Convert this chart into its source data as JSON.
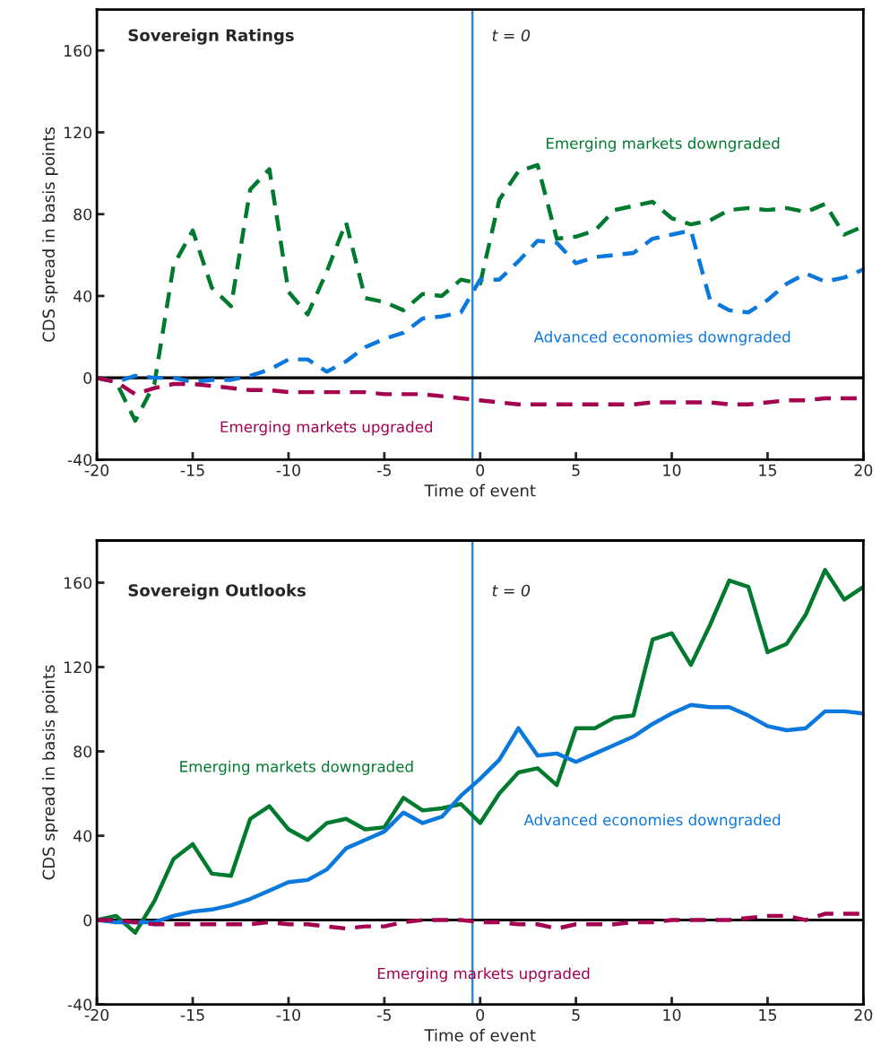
{
  "chart_data": [
    {
      "type": "line",
      "title": "Sovereign Ratings",
      "xlabel": "Time of event",
      "ylabel": "CDS spread in basis points",
      "x": [
        -20,
        -19,
        -18,
        -17,
        -16,
        -15,
        -14,
        -13,
        -12,
        -11,
        -10,
        -9,
        -8,
        -7,
        -6,
        -5,
        -4,
        -3,
        -2,
        -1,
        0,
        1,
        2,
        3,
        4,
        5,
        6,
        7,
        8,
        9,
        10,
        11,
        12,
        13,
        14,
        15,
        16,
        17,
        18,
        19,
        20
      ],
      "series": [
        {
          "name": "Emerging markets downgraded",
          "color": "#007a2e",
          "line_style": "dashed",
          "values": [
            0,
            -2,
            -21,
            -3,
            55,
            72,
            44,
            35,
            92,
            102,
            42,
            31,
            52,
            76,
            39,
            37,
            33,
            41,
            40,
            48,
            46,
            87,
            101,
            104,
            68,
            69,
            72,
            82,
            84,
            86,
            78,
            75,
            77,
            82,
            83,
            82,
            83,
            81,
            85,
            70,
            74
          ]
        },
        {
          "name": "Advanced economies downgraded",
          "color": "#0a78dc",
          "line_style": "dashed",
          "values": [
            0,
            -2,
            1,
            0,
            0,
            -2,
            -1,
            -1,
            1,
            4,
            9,
            9,
            3,
            8,
            15,
            19,
            22,
            29,
            30,
            32,
            48,
            48,
            57,
            67,
            66,
            56,
            59,
            60,
            61,
            68,
            70,
            72,
            38,
            33,
            32,
            38,
            46,
            51,
            47,
            49,
            53
          ]
        },
        {
          "name": "Emerging markets upgraded",
          "color": "#a5004f",
          "line_style": "dashed",
          "values": [
            0,
            -2,
            -8,
            -5,
            -3,
            -3,
            -4,
            -5,
            -6,
            -6,
            -7,
            -7,
            -7,
            -7,
            -7,
            -8,
            -8,
            -8,
            -9,
            -10,
            -11,
            -12,
            -13,
            -13,
            -13,
            -13,
            -13,
            -13,
            -13,
            -12,
            -12,
            -12,
            -12,
            -13,
            -13,
            -12,
            -11,
            -11,
            -10,
            -10,
            -10
          ]
        }
      ],
      "xlim": [
        -20,
        20
      ],
      "ylim": [
        -40,
        180
      ],
      "xticks": [
        -20,
        -15,
        -10,
        -5,
        0,
        5,
        10,
        15,
        20
      ],
      "yticks": [
        -40,
        0,
        40,
        80,
        120,
        160
      ],
      "grid": false,
      "ref_lines": [
        {
          "axis": "x",
          "value": -0.4,
          "label": "t = 0",
          "color": "#2e8bd0"
        },
        {
          "axis": "y",
          "value": 0,
          "color": "#000000"
        }
      ]
    },
    {
      "type": "line",
      "title": "Sovereign Outlooks",
      "xlabel": "Time of event",
      "ylabel": "CDS spread in basis points",
      "x": [
        -20,
        -19,
        -18,
        -17,
        -16,
        -15,
        -14,
        -13,
        -12,
        -11,
        -10,
        -9,
        -8,
        -7,
        -6,
        -5,
        -4,
        -3,
        -2,
        -1,
        0,
        1,
        2,
        3,
        4,
        5,
        6,
        7,
        8,
        9,
        10,
        11,
        12,
        13,
        14,
        15,
        16,
        17,
        18,
        19,
        20
      ],
      "series": [
        {
          "name": "Emerging markets downgraded",
          "color": "#007a2e",
          "line_style": "solid",
          "values": [
            0,
            2,
            -6,
            9,
            29,
            36,
            22,
            21,
            48,
            54,
            43,
            38,
            46,
            48,
            43,
            44,
            58,
            52,
            53,
            55,
            46,
            60,
            70,
            72,
            64,
            91,
            91,
            96,
            97,
            133,
            136,
            121,
            140,
            161,
            158,
            127,
            131,
            145,
            166,
            152,
            158
          ]
        },
        {
          "name": "Advanced economies downgraded",
          "color": "#0a78dc",
          "line_style": "solid",
          "values": [
            0,
            -1,
            -1,
            -1,
            2,
            4,
            5,
            7,
            10,
            14,
            18,
            19,
            24,
            34,
            38,
            42,
            51,
            46,
            49,
            59,
            67,
            76,
            91,
            78,
            79,
            75,
            79,
            83,
            87,
            93,
            98,
            102,
            101,
            101,
            97,
            92,
            90,
            91,
            99,
            99,
            98
          ]
        },
        {
          "name": "Emerging markets upgraded",
          "color": "#a5004f",
          "line_style": "dashed",
          "values": [
            0,
            0,
            -1,
            -2,
            -2,
            -2,
            -2,
            -2,
            -2,
            -1,
            -2,
            -2,
            -3,
            -4,
            -3,
            -3,
            -1,
            0,
            0,
            0,
            -1,
            -1,
            -2,
            -2,
            -4,
            -2,
            -2,
            -2,
            -1,
            -1,
            0,
            0,
            0,
            0,
            1,
            2,
            2,
            0,
            3,
            3,
            3
          ]
        }
      ],
      "xlim": [
        -20,
        20
      ],
      "ylim": [
        -40,
        180
      ],
      "xticks": [
        -20,
        -15,
        -10,
        -5,
        0,
        5,
        10,
        15,
        20
      ],
      "yticks": [
        -40,
        0,
        40,
        80,
        120,
        160
      ],
      "grid": false,
      "ref_lines": [
        {
          "axis": "x",
          "value": -0.4,
          "label": "t = 0",
          "color": "#2e8bd0"
        },
        {
          "axis": "y",
          "value": 0,
          "color": "#000000"
        }
      ]
    }
  ]
}
